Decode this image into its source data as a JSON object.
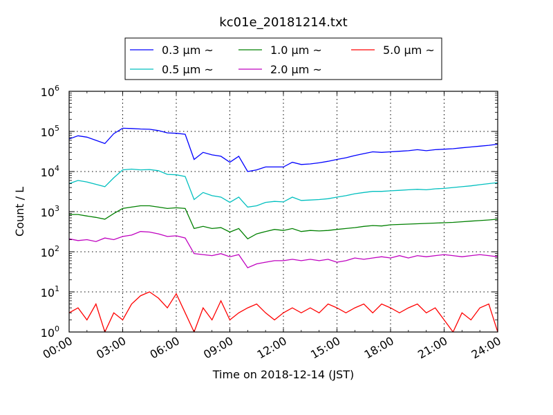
{
  "chart_data": {
    "type": "line",
    "title": "kc01e_20181214.txt",
    "xlabel": "Time on 2018-12-14 (JST)",
    "ylabel": "Count / L",
    "yscale": "log",
    "ylim": [
      1,
      1000000
    ],
    "xlim": [
      0,
      24
    ],
    "grid": true,
    "legend_position": "top-center",
    "x_tick_labels": [
      "00:00",
      "03:00",
      "06:00",
      "09:00",
      "12:00",
      "15:00",
      "18:00",
      "21:00",
      "24:00"
    ],
    "y_tick_labels": [
      {
        "base": "10",
        "exp": "0"
      },
      {
        "base": "10",
        "exp": "1"
      },
      {
        "base": "10",
        "exp": "2"
      },
      {
        "base": "10",
        "exp": "3"
      },
      {
        "base": "10",
        "exp": "4"
      },
      {
        "base": "10",
        "exp": "5"
      },
      {
        "base": "10",
        "exp": "6"
      }
    ],
    "x_hours": [
      0,
      0.5,
      1,
      1.5,
      2,
      2.5,
      3,
      3.5,
      4,
      4.5,
      5,
      5.5,
      6,
      6.5,
      7,
      7.5,
      8,
      8.5,
      9,
      9.5,
      10,
      10.5,
      11,
      11.5,
      12,
      12.5,
      13,
      13.5,
      14,
      14.5,
      15,
      15.5,
      16,
      16.5,
      17,
      17.5,
      18,
      18.5,
      19,
      19.5,
      20,
      20.5,
      21,
      21.5,
      22,
      22.5,
      23,
      23.5,
      24
    ],
    "series": [
      {
        "name": "0.3 μm ~",
        "color": "#0000ff",
        "values": [
          65000,
          78000,
          72000,
          60000,
          50000,
          88000,
          120000,
          118000,
          115000,
          113000,
          105000,
          92000,
          90000,
          85000,
          20000,
          30000,
          26000,
          24000,
          17000,
          24000,
          10000,
          11000,
          13000,
          13000,
          13000,
          17000,
          15000,
          15500,
          16500,
          18000,
          20000,
          22000,
          25000,
          28000,
          31000,
          30000,
          31000,
          32000,
          33000,
          35000,
          33000,
          35000,
          36000,
          37000,
          39000,
          41000,
          43000,
          45000,
          48000
        ]
      },
      {
        "name": "0.5 μm ~",
        "color": "#00bfbf",
        "values": [
          5000,
          6000,
          5500,
          4800,
          4200,
          7000,
          11000,
          11500,
          11000,
          11200,
          10500,
          8500,
          8300,
          7500,
          2000,
          3000,
          2500,
          2300,
          1700,
          2300,
          1300,
          1400,
          1700,
          1800,
          1750,
          2300,
          1900,
          1950,
          2000,
          2100,
          2300,
          2500,
          2800,
          3000,
          3200,
          3200,
          3300,
          3400,
          3500,
          3600,
          3500,
          3700,
          3800,
          4000,
          4200,
          4400,
          4700,
          5000,
          5300
        ]
      },
      {
        "name": "1.0 μm ~",
        "color": "#008000",
        "values": [
          850,
          850,
          780,
          720,
          650,
          900,
          1200,
          1300,
          1400,
          1400,
          1300,
          1200,
          1250,
          1200,
          380,
          430,
          380,
          400,
          310,
          380,
          210,
          280,
          320,
          360,
          340,
          380,
          320,
          340,
          330,
          340,
          360,
          380,
          400,
          430,
          450,
          440,
          470,
          480,
          490,
          500,
          510,
          520,
          530,
          540,
          560,
          580,
          600,
          620,
          650
        ]
      },
      {
        "name": "2.0 μm ~",
        "color": "#bf00bf",
        "values": [
          210,
          190,
          200,
          180,
          220,
          200,
          240,
          260,
          320,
          310,
          280,
          240,
          250,
          220,
          90,
          85,
          80,
          90,
          75,
          85,
          40,
          50,
          55,
          60,
          60,
          65,
          60,
          65,
          60,
          65,
          55,
          60,
          70,
          65,
          70,
          75,
          70,
          80,
          70,
          80,
          75,
          80,
          85,
          80,
          75,
          80,
          85,
          80,
          75
        ]
      },
      {
        "name": "5.0 μm ~",
        "color": "#ff0000",
        "values": [
          3,
          4,
          2,
          5,
          1,
          3,
          2,
          5,
          8,
          10,
          7,
          4,
          9,
          3,
          1,
          4,
          2,
          6,
          2,
          3,
          4,
          5,
          3,
          2,
          3,
          4,
          3,
          4,
          3,
          5,
          4,
          3,
          4,
          5,
          3,
          5,
          4,
          3,
          4,
          5,
          3,
          4,
          2,
          1,
          3,
          2,
          4,
          5,
          1
        ]
      }
    ]
  }
}
